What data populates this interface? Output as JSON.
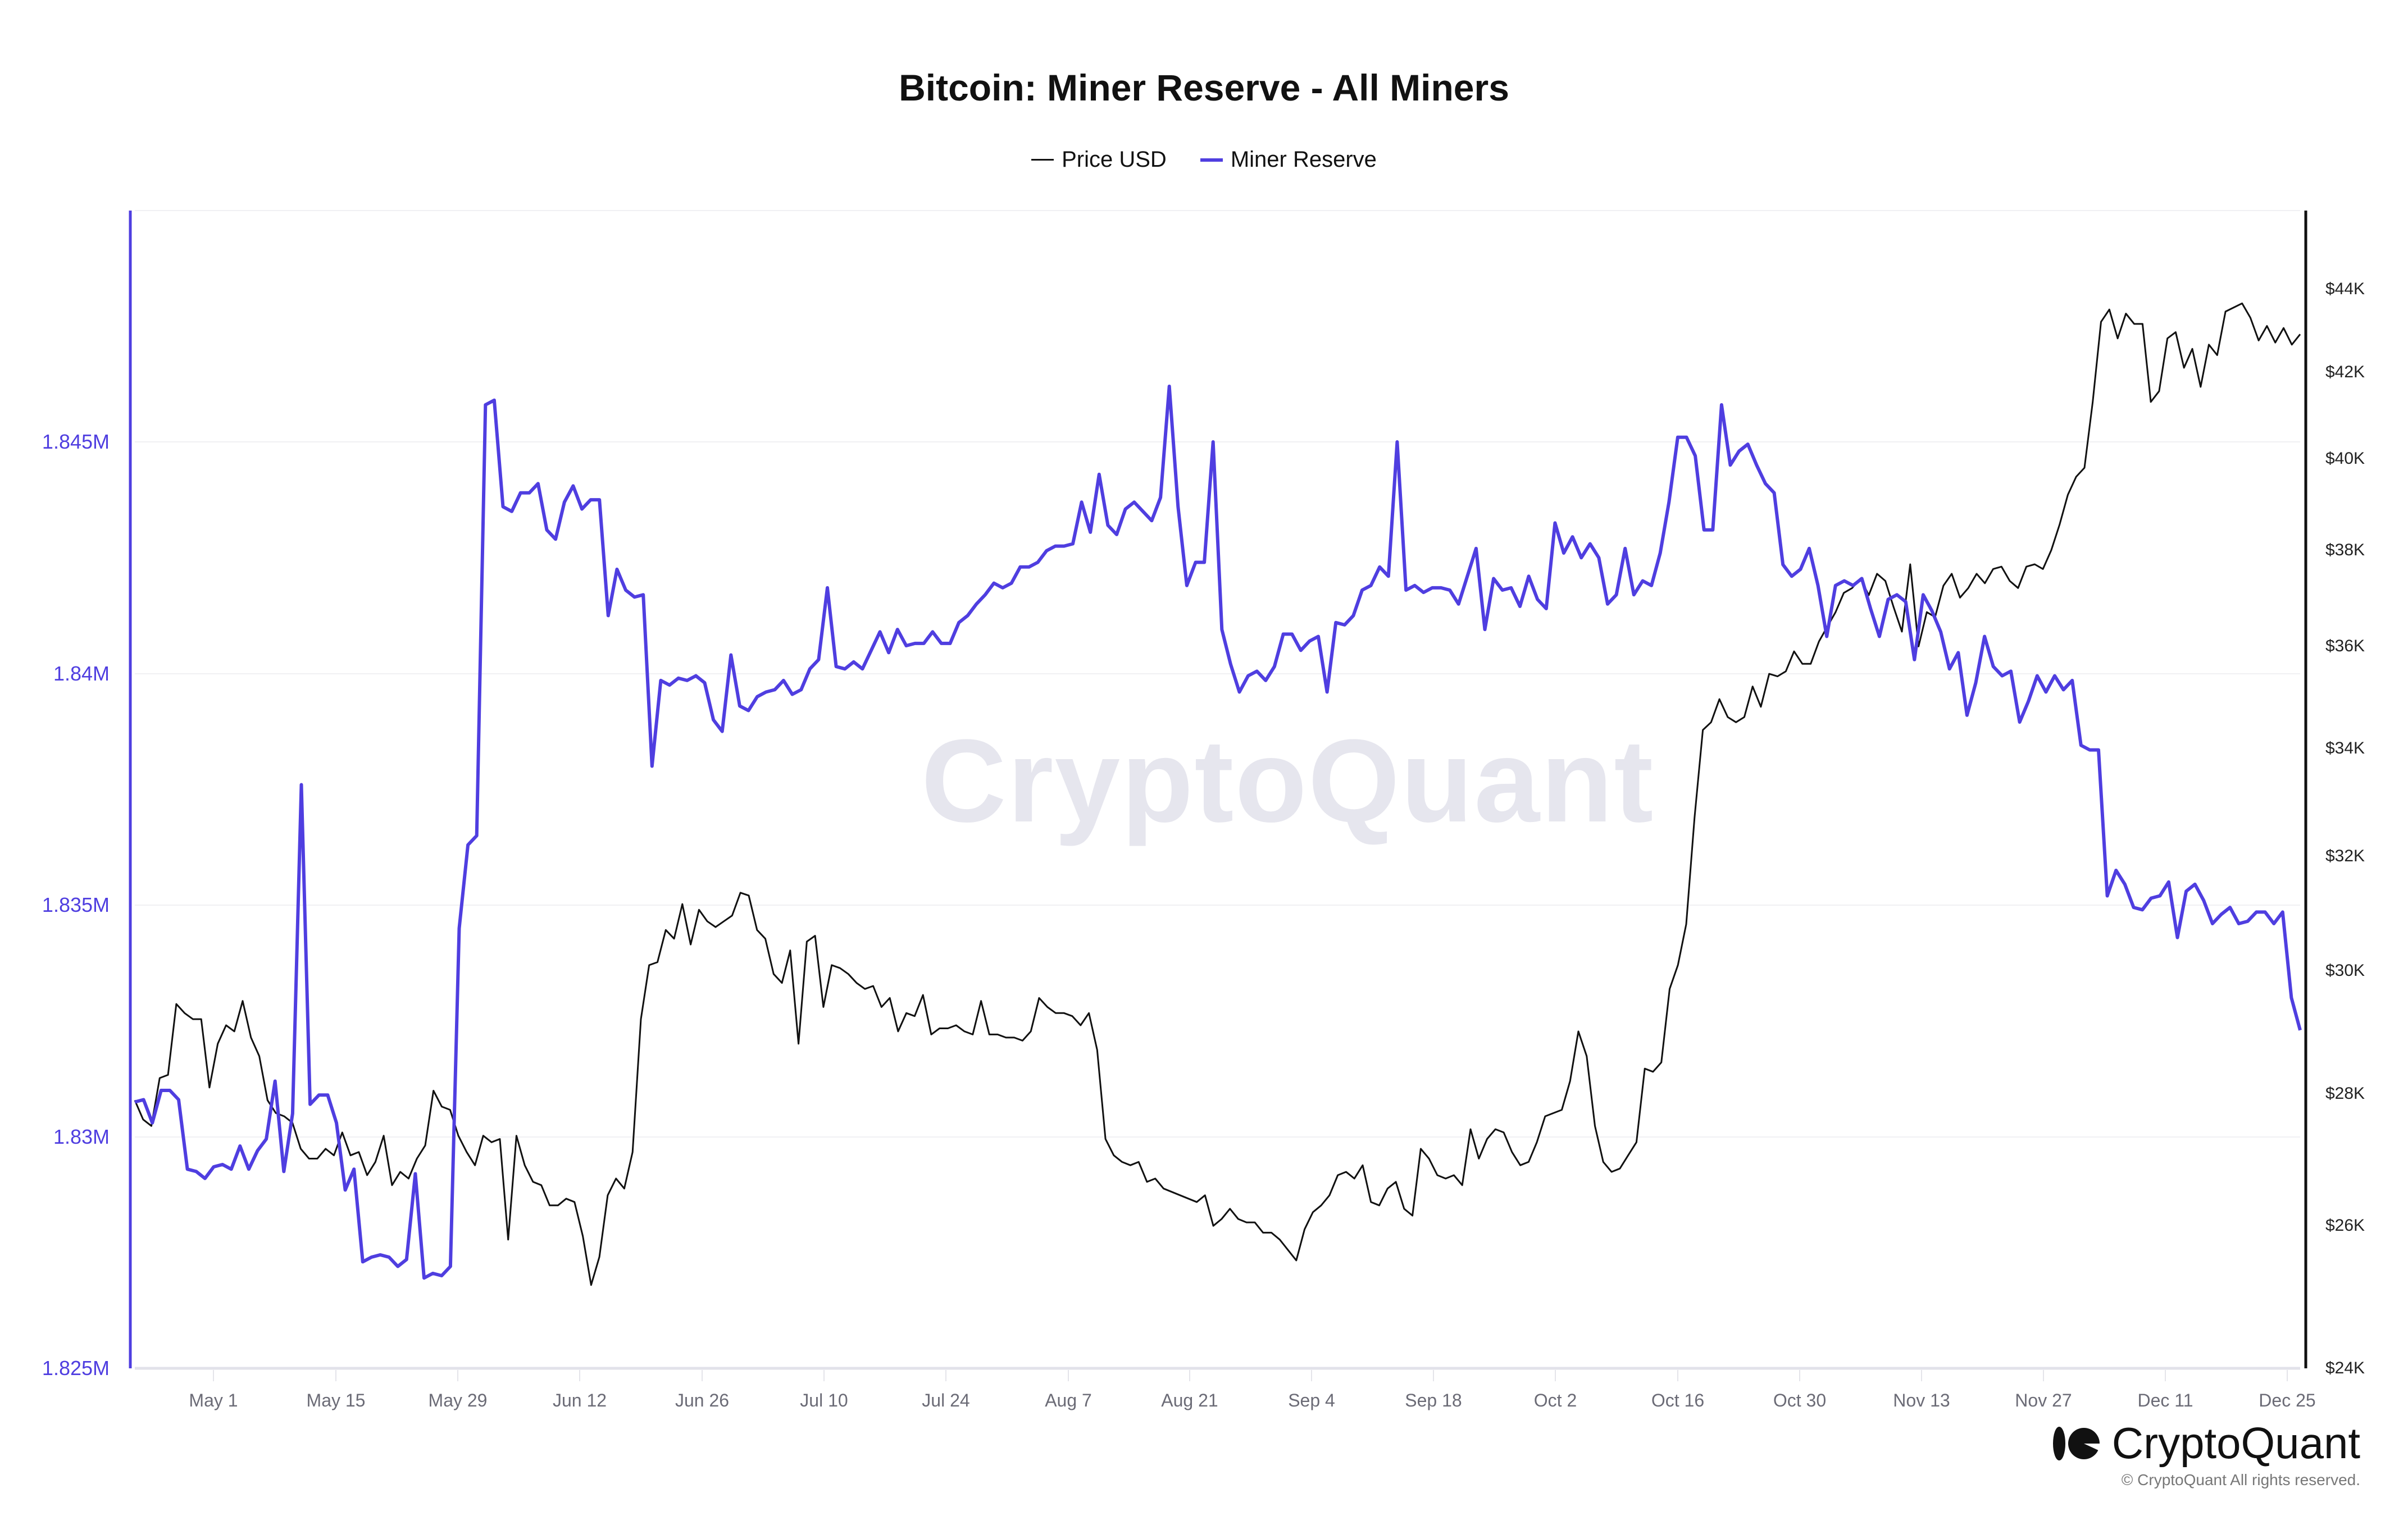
{
  "title": "Bitcoin: Miner Reserve - All Miners",
  "legend": [
    {
      "label": "Price USD",
      "color": "#111111"
    },
    {
      "label": "Miner Reserve",
      "color": "#4f3ee0"
    }
  ],
  "left_axis": {
    "ticks": [
      "1.845M",
      "1.84M",
      "1.835M",
      "1.83M",
      "1.825M"
    ]
  },
  "right_axis": {
    "ticks": [
      "$44K",
      "$42K",
      "$40K",
      "$38K",
      "$36K",
      "$34K",
      "$32K",
      "$30K",
      "$28K",
      "$26K",
      "$24K"
    ]
  },
  "x_axis": {
    "ticks": [
      "May 1",
      "May 15",
      "May 29",
      "Jun 12",
      "Jun 26",
      "Jul 10",
      "Jul 24",
      "Aug 7",
      "Aug 21",
      "Sep 4",
      "Sep 18",
      "Oct 2",
      "Oct 16",
      "Oct 30",
      "Nov 13",
      "Nov 27",
      "Dec 11",
      "Dec 25"
    ]
  },
  "watermark": "CryptoQuant",
  "brand": {
    "name": "CryptoQuant",
    "copyright": "© CryptoQuant All rights reserved."
  },
  "chart_data": {
    "type": "line",
    "title": "Bitcoin: Miner Reserve - All Miners",
    "xlabel": "",
    "x_range": [
      "Apr 22",
      "Dec 29"
    ],
    "x_ticks": [
      "May 1",
      "May 15",
      "May 29",
      "Jun 12",
      "Jun 26",
      "Jul 10",
      "Jul 24",
      "Aug 7",
      "Aug 21",
      "Sep 4",
      "Sep 18",
      "Oct 2",
      "Oct 16",
      "Oct 30",
      "Nov 13",
      "Nov 27",
      "Dec 11",
      "Dec 25"
    ],
    "legend_position": "top",
    "grid": true,
    "series": [
      {
        "name": "Miner Reserve",
        "axis": "left",
        "unit": "BTC",
        "ylim": [
          1825000,
          1850000
        ],
        "color": "#4f3ee0",
        "values": [
          1830750,
          1830800,
          1830300,
          1831000,
          1831000,
          1830800,
          1829300,
          1829250,
          1829100,
          1829350,
          1829400,
          1829300,
          1829800,
          1829300,
          1829700,
          1829950,
          1831200,
          1829250,
          1830500,
          1837600,
          1830700,
          1830900,
          1830900,
          1830300,
          1828850,
          1829300,
          1827300,
          1827400,
          1827450,
          1827400,
          1827200,
          1827350,
          1829200,
          1826950,
          1827050,
          1827000,
          1827200,
          1834500,
          1836300,
          1836500,
          1845800,
          1845900,
          1843600,
          1843500,
          1843900,
          1843900,
          1844100,
          1843100,
          1842900,
          1843700,
          1844050,
          1843550,
          1843750,
          1843750,
          1841250,
          1842250,
          1841800,
          1841650,
          1841700,
          1838000,
          1839850,
          1839750,
          1839900,
          1839850,
          1839950,
          1839800,
          1839000,
          1838750,
          1840400,
          1839300,
          1839200,
          1839500,
          1839600,
          1839650,
          1839850,
          1839550,
          1839650,
          1840100,
          1840300,
          1841850,
          1840150,
          1840100,
          1840250,
          1840100,
          1840500,
          1840900,
          1840450,
          1840950,
          1840600,
          1840650,
          1840650,
          1840900,
          1840650,
          1840650,
          1841100,
          1841250,
          1841500,
          1841700,
          1841950,
          1841850,
          1841950,
          1842300,
          1842300,
          1842400,
          1842650,
          1842750,
          1842750,
          1842800,
          1843700,
          1843050,
          1844300,
          1843200,
          1843000,
          1843550,
          1843700,
          1843500,
          1843300,
          1843800,
          1846200,
          1843600,
          1841900,
          1842400,
          1842400,
          1845000,
          1840950,
          1840200,
          1839600,
          1839950,
          1840050,
          1839850,
          1840150,
          1840850,
          1840850,
          1840500,
          1840700,
          1840800,
          1839600,
          1841100,
          1841050,
          1841250,
          1841800,
          1841900,
          1842300,
          1842100,
          1845000,
          1841800,
          1841900,
          1841750,
          1841850,
          1841850,
          1841800,
          1841500,
          1842100,
          1842700,
          1840950,
          1842050,
          1841800,
          1841850,
          1841450,
          1842100,
          1841600,
          1841400,
          1843250,
          1842600,
          1842950,
          1842500,
          1842800,
          1842500,
          1841500,
          1841700,
          1842700,
          1841700,
          1842000,
          1841900,
          1842600,
          1843700,
          1845100,
          1845100,
          1844700,
          1843100,
          1843100,
          1845800,
          1844500,
          1844800,
          1844950,
          1844500,
          1844100,
          1843900,
          1842350,
          1842100,
          1842250,
          1842700,
          1841900,
          1840800,
          1841900,
          1842000,
          1841900,
          1842050,
          1841400,
          1840800,
          1841600,
          1841700,
          1841550,
          1840300,
          1841700,
          1841350,
          1840900,
          1840100,
          1840450,
          1839100,
          1839800,
          1840800,
          1840150,
          1839950,
          1840050,
          1838950,
          1839400,
          1839950,
          1839600,
          1839950,
          1839650,
          1839850,
          1838450,
          1838350,
          1838350,
          1835200,
          1835750,
          1835450,
          1834950,
          1834900,
          1835150,
          1835200,
          1835500,
          1834300,
          1835300,
          1835450,
          1835100,
          1834600,
          1834800,
          1834950,
          1834600,
          1834650,
          1834850,
          1834850,
          1834600,
          1834850,
          1833000,
          1832300
        ]
      },
      {
        "name": "Price USD",
        "axis": "right",
        "unit": "USD",
        "scale": "log",
        "ylim": [
          24000,
          46000
        ],
        "color": "#111111",
        "values": [
          27900,
          27600,
          27500,
          28250,
          28300,
          29450,
          29300,
          29200,
          29200,
          28100,
          28800,
          29100,
          29000,
          29500,
          28900,
          28600,
          27900,
          27700,
          27650,
          27550,
          27150,
          27000,
          27000,
          27150,
          27050,
          27400,
          27050,
          27100,
          26750,
          26950,
          27350,
          26600,
          26800,
          26700,
          27000,
          27200,
          28050,
          27800,
          27750,
          27350,
          27100,
          26900,
          27350,
          27250,
          27300,
          25800,
          27350,
          26900,
          26650,
          26600,
          26300,
          26300,
          26400,
          26350,
          25850,
          25150,
          25550,
          26450,
          26700,
          26550,
          27100,
          29200,
          30100,
          30150,
          30700,
          30550,
          31150,
          30450,
          31050,
          30850,
          30750,
          30850,
          30950,
          31350,
          31300,
          30700,
          30550,
          29950,
          29800,
          30350,
          28800,
          30500,
          30600,
          29400,
          30100,
          30050,
          29950,
          29800,
          29700,
          29750,
          29400,
          29550,
          29000,
          29300,
          29250,
          29600,
          28950,
          29050,
          29050,
          29100,
          29000,
          28950,
          29500,
          28950,
          28950,
          28900,
          28900,
          28850,
          29000,
          29550,
          29400,
          29300,
          29300,
          29250,
          29100,
          29300,
          28700,
          27300,
          27050,
          26950,
          26900,
          26950,
          26650,
          26700,
          26550,
          26500,
          26450,
          26400,
          26350,
          26450,
          26000,
          26100,
          26250,
          26100,
          26050,
          26050,
          25900,
          25900,
          25800,
          25650,
          25500,
          25950,
          26200,
          26300,
          26450,
          26750,
          26800,
          26700,
          26900,
          26350,
          26300,
          26550,
          26650,
          26250,
          26150,
          27150,
          27000,
          26750,
          26700,
          26750,
          26600,
          27450,
          27000,
          27300,
          27450,
          27400,
          27100,
          26900,
          26950,
          27250,
          27650,
          27700,
          27750,
          28200,
          29000,
          28600,
          27500,
          26950,
          26800,
          26850,
          27050,
          27250,
          28400,
          28350,
          28500,
          29700,
          30100,
          30800,
          32700,
          34350,
          34500,
          34950,
          34600,
          34500,
          34600,
          35200,
          34800,
          35450,
          35400,
          35500,
          35900,
          35650,
          35650,
          36100,
          36400,
          36700,
          37100,
          37200,
          37400,
          37050,
          37500,
          37350,
          36800,
          36300,
          37700,
          36000,
          36700,
          36600,
          37250,
          37500,
          37000,
          37200,
          37500,
          37300,
          37600,
          37650,
          37350,
          37200,
          37650,
          37700,
          37600,
          38000,
          38550,
          39200,
          39600,
          39800,
          41300,
          43200,
          43500,
          42800,
          43400,
          43150,
          43150,
          41300,
          41550,
          42800,
          42950,
          42100,
          42550,
          41650,
          42650,
          42400,
          43450,
          43550,
          43650,
          43300,
          42750,
          43100,
          42700,
          43050,
          42650,
          42900
        ]
      }
    ]
  }
}
